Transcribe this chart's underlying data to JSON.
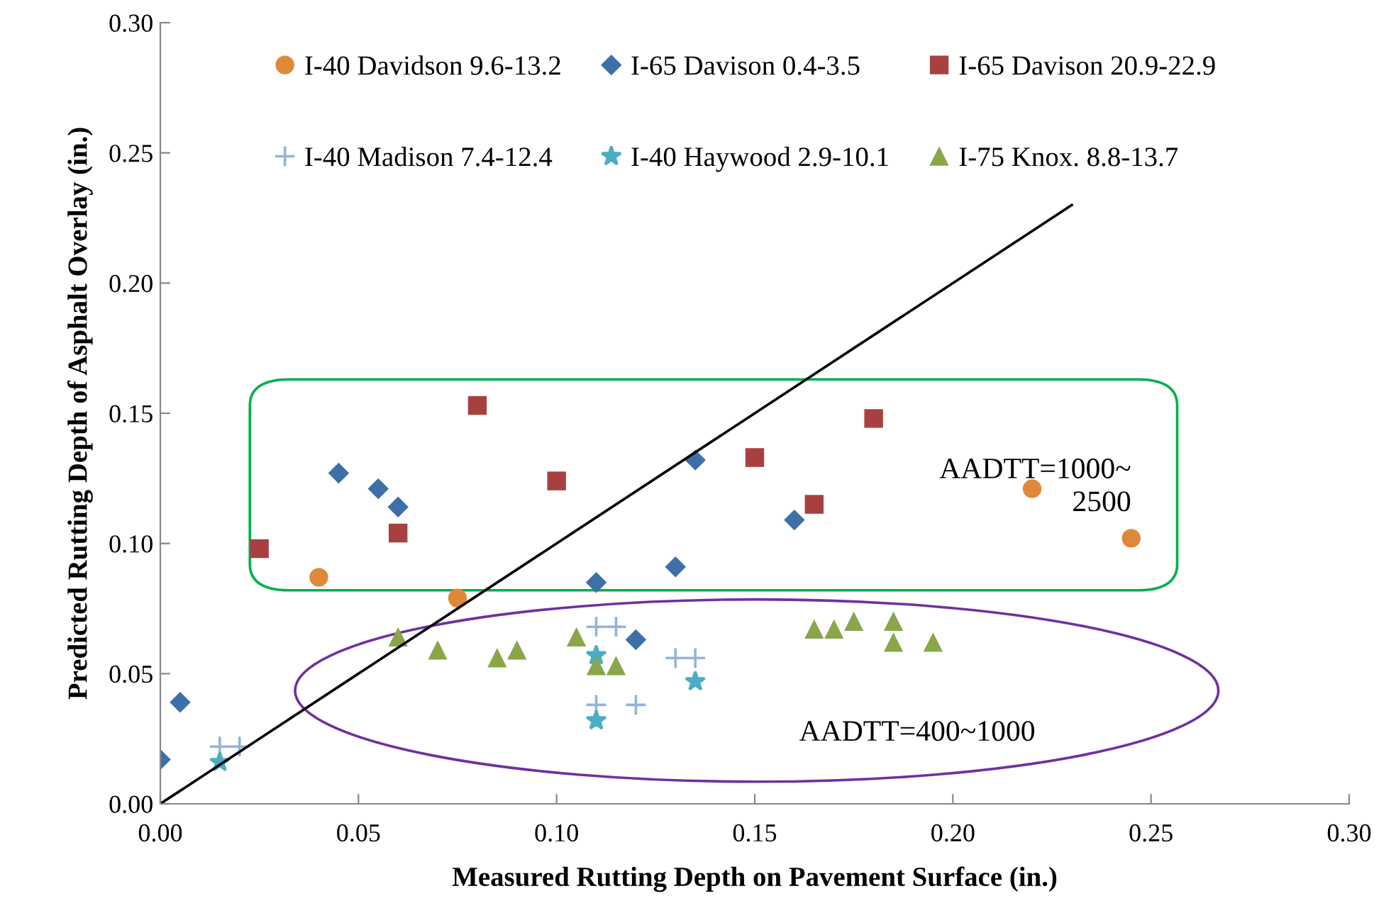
{
  "chart_data": {
    "type": "scatter",
    "xlabel": "Measured Rutting Depth on Pavement Surface (in.)",
    "ylabel": "Predicted Rutting Depth of Asphalt Overlay (in.)",
    "xlim": [
      0,
      0.3
    ],
    "ylim": [
      0,
      0.3
    ],
    "xticks": [
      {
        "value": 0,
        "label": "0.00"
      },
      {
        "value": 0.05,
        "label": "0.05"
      },
      {
        "value": 0.1,
        "label": "0.10"
      },
      {
        "value": 0.15,
        "label": "0.15"
      },
      {
        "value": 0.2,
        "label": "0.20"
      },
      {
        "value": 0.25,
        "label": "0.25"
      },
      {
        "value": 0.3,
        "label": "0.30"
      }
    ],
    "yticks": [
      {
        "value": 0,
        "label": "0.00"
      },
      {
        "value": 0.05,
        "label": "0.05"
      },
      {
        "value": 0.1,
        "label": "0.10"
      },
      {
        "value": 0.15,
        "label": "0.15"
      },
      {
        "value": 0.2,
        "label": "0.20"
      },
      {
        "value": 0.25,
        "label": "0.25"
      },
      {
        "value": 0.3,
        "label": "0.30"
      }
    ],
    "grid": false,
    "legend": "top",
    "series": [
      {
        "name": "I-40 Davidson 9.6-13.2",
        "color": "#e0883a",
        "marker": "circle",
        "x": [
          0.04,
          0.075,
          0.22,
          0.245
        ],
        "values": [
          0.087,
          0.079,
          0.121,
          0.102
        ]
      },
      {
        "name": "I-65 Davison 0.4-3.5",
        "color": "#3e6fa8",
        "marker": "diamond",
        "x": [
          0,
          0.005,
          0.045,
          0.055,
          0.06,
          0.11,
          0.12,
          0.13,
          0.135,
          0.16
        ],
        "values": [
          0.017,
          0.039,
          0.127,
          0.121,
          0.114,
          0.085,
          0.063,
          0.091,
          0.132,
          0.109
        ]
      },
      {
        "name": "I-65 Davison 20.9-22.9",
        "color": "#a94040",
        "marker": "square",
        "x": [
          0.025,
          0.06,
          0.08,
          0.1,
          0.15,
          0.165,
          0.18
        ],
        "values": [
          0.098,
          0.104,
          0.153,
          0.124,
          0.133,
          0.115,
          0.148
        ]
      },
      {
        "name": "I-40 Madison 7.4-12.4",
        "color": "#95b3d7",
        "marker": "cross",
        "x": [
          0.015,
          0.02,
          0.11,
          0.115,
          0.13,
          0.135,
          0.11,
          0.12
        ],
        "values": [
          0.022,
          0.022,
          0.068,
          0.068,
          0.056,
          0.056,
          0.038,
          0.038
        ]
      },
      {
        "name": "I-40 Haywood 2.9-10.1",
        "color": "#4bacc6",
        "marker": "star",
        "x": [
          0.015,
          0.11,
          0.135,
          0.11
        ],
        "values": [
          0.016,
          0.057,
          0.047,
          0.032
        ]
      },
      {
        "name": "I-75 Knox. 8.8-13.7",
        "color": "#8ba54a",
        "marker": "triangle",
        "x": [
          0.06,
          0.07,
          0.085,
          0.09,
          0.105,
          0.11,
          0.115,
          0.165,
          0.17,
          0.175,
          0.185,
          0.185,
          0.195
        ],
        "values": [
          0.064,
          0.059,
          0.056,
          0.059,
          0.064,
          0.053,
          0.053,
          0.067,
          0.067,
          0.07,
          0.07,
          0.062,
          0.062
        ]
      },
      {
        "type": "line",
        "color": "#000000",
        "marker": "none",
        "x": [
          0,
          0.23
        ],
        "values": [
          0,
          0.23
        ]
      }
    ],
    "annotations": [
      "AADTT=1000~\n2500",
      "AADTT=400~1000"
    ]
  }
}
